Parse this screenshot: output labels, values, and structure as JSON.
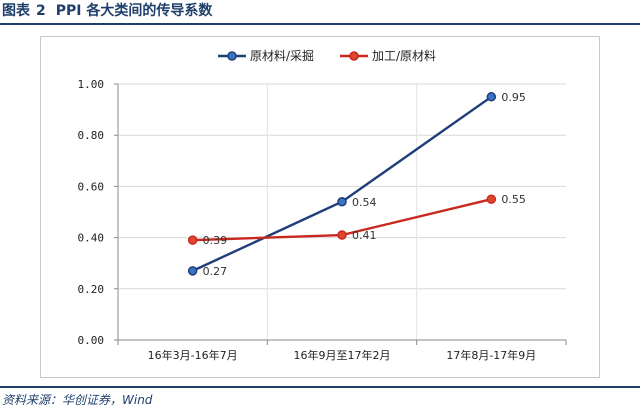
{
  "figure": {
    "label": "图表",
    "number": "2",
    "title": "PPI 各大类间的传导系数"
  },
  "source": "资料来源：华创证券，Wind",
  "chart_data": {
    "type": "line",
    "categories": [
      "16年3月-16年7月",
      "16年9月至17年2月",
      "17年8月-17年9月"
    ],
    "series": [
      {
        "name": "原材料/采掘",
        "values": [
          0.27,
          0.54,
          0.95
        ],
        "color": "#1f3e7a",
        "marker_fill": "#3a74c4"
      },
      {
        "name": "加工/原材料",
        "values": [
          0.39,
          0.41,
          0.55
        ],
        "color": "#c8281e",
        "marker_fill": "#e0452e"
      }
    ],
    "y_ticks": [
      "0.00",
      "0.20",
      "0.40",
      "0.60",
      "0.80",
      "1.00"
    ],
    "ylim": [
      0,
      1.0
    ],
    "grid": true,
    "legend": "top-center",
    "data_labels": true
  }
}
